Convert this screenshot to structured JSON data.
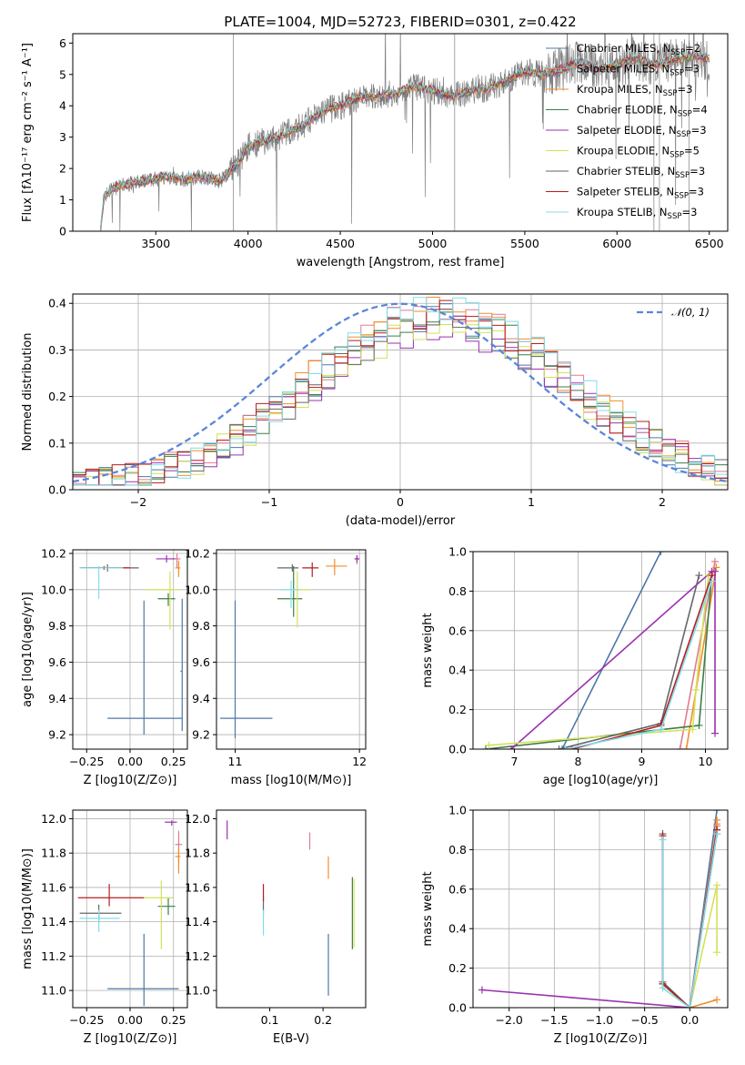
{
  "figure": {
    "title": "PLATE=1004, MJD=52723, FIBERID=0301, z=0.422"
  },
  "models": [
    {
      "name": "Chabrier MILES",
      "nssp": "2",
      "color": "#4e79a7"
    },
    {
      "name": "Salpeter MILES",
      "nssp": "3",
      "color": "#e07b8f"
    },
    {
      "name": "Kroupa MILES",
      "nssp": "3",
      "color": "#f28e2b"
    },
    {
      "name": "Chabrier ELODIE",
      "nssp": "4",
      "color": "#3b7d4a"
    },
    {
      "name": "Salpeter ELODIE",
      "nssp": "3",
      "color": "#9b30b0"
    },
    {
      "name": "Kroupa ELODIE",
      "nssp": "5",
      "color": "#d4e157"
    },
    {
      "name": "Chabrier STELIB",
      "nssp": "3",
      "color": "#666666"
    },
    {
      "name": "Salpeter STELIB",
      "nssp": "3",
      "color": "#b71c1c"
    },
    {
      "name": "Kroupa STELIB",
      "nssp": "3",
      "color": "#80deea"
    }
  ],
  "legend_parts": {
    "prefix": "N",
    "subscript": "SSP",
    "eq": "="
  },
  "chart_data": [
    {
      "id": "spectrum",
      "type": "line",
      "xlabel": "wavelength [Angstrom, rest frame]",
      "ylabel": "Flux [fλ10⁻¹⁷ erg cm⁻² s⁻¹ A⁻¹]",
      "xlim": [
        3050,
        6600
      ],
      "ylim": [
        0,
        6.3
      ],
      "xticks": [
        "3500",
        "4000",
        "4500",
        "5000",
        "5500",
        "6000",
        "6500"
      ],
      "yticks": [
        "0",
        "1",
        "2",
        "3",
        "4",
        "5",
        "6"
      ],
      "grid": false,
      "legend": "right",
      "model_continuum": {
        "x": [
          3200,
          3220,
          3260,
          3350,
          3450,
          3550,
          3650,
          3750,
          3850,
          3950,
          4000,
          4100,
          4200,
          4300,
          4400,
          4500,
          4600,
          4700,
          4800,
          4900,
          5000,
          5100,
          5200,
          5300,
          5400,
          5500,
          5600,
          5700,
          5800,
          5900,
          6000,
          6100,
          6200,
          6300,
          6400,
          6500
        ],
        "y": [
          0,
          1.1,
          1.35,
          1.5,
          1.6,
          1.75,
          1.65,
          1.75,
          1.6,
          2.2,
          2.7,
          2.9,
          3.1,
          3.4,
          3.8,
          4.0,
          4.25,
          4.3,
          4.4,
          4.6,
          4.5,
          4.3,
          4.45,
          4.55,
          4.8,
          5.1,
          5.0,
          5.15,
          5.4,
          5.2,
          5.3,
          5.5,
          5.3,
          5.45,
          5.6,
          5.5
        ]
      }
    },
    {
      "id": "residual-histogram",
      "type": "histogram",
      "xlabel": "(data-model)/error",
      "ylabel": "Normed distribution",
      "xlim": [
        -2.5,
        2.5
      ],
      "ylim": [
        0,
        0.42
      ],
      "xticks": [
        "−2",
        "−1",
        "0",
        "1",
        "2"
      ],
      "yticks": [
        "0.0",
        "0.1",
        "0.2",
        "0.3",
        "0.4"
      ],
      "grid": true,
      "legend": "top-right",
      "reference_curve": {
        "name": "𝒩(0, 1)",
        "mean": 0,
        "sigma": 1,
        "color": "#5b86d9"
      }
    },
    {
      "id": "age-vs-metallicity",
      "type": "errorbar",
      "xlabel": "Z [log10(Z/Z⊙)]",
      "ylabel": "age [log10(age/yr)]",
      "xlim": [
        -0.33,
        0.33
      ],
      "ylim": [
        9.12,
        10.22
      ],
      "xticks": [
        "−0.25",
        "0.00",
        "0.25"
      ],
      "yticks": [
        "9.2",
        "9.4",
        "9.6",
        "9.8",
        "10.0",
        "10.2"
      ],
      "grid": true,
      "points": [
        {
          "model": 0,
          "x": 0.08,
          "xerr": [
            0.21,
            0.22
          ],
          "y": 9.29,
          "yerr": [
            0.09,
            0.65
          ]
        },
        {
          "model": 0,
          "x": 0.3,
          "xerr": [
            0.01,
            0.0
          ],
          "y": 9.55,
          "yerr": [
            0.33,
            0.4
          ]
        },
        {
          "model": 1,
          "x": 0.27,
          "xerr": [
            0.03,
            0.02
          ],
          "y": 10.17,
          "yerr": [
            0.05,
            0.03
          ]
        },
        {
          "model": 2,
          "x": 0.28,
          "xerr": [
            0.02,
            0.01
          ],
          "y": 10.12,
          "yerr": [
            0.05,
            0.04
          ]
        },
        {
          "model": 3,
          "x": 0.22,
          "xerr": [
            0.06,
            0.04
          ],
          "y": 9.95,
          "yerr": [
            0.04,
            0.03
          ]
        },
        {
          "model": 4,
          "x": 0.21,
          "xerr": [
            0.06,
            0.05
          ],
          "y": 10.17,
          "yerr": [
            0.02,
            0.02
          ]
        },
        {
          "model": 5,
          "x": 0.23,
          "xerr": [
            0.14,
            0.05
          ],
          "y": 10.0,
          "yerr": [
            0.22,
            0.1
          ]
        },
        {
          "model": 6,
          "x": -0.13,
          "xerr": [
            0.15,
            0.18
          ],
          "y": 10.12,
          "yerr": [
            0.02,
            0.02
          ]
        },
        {
          "model": 7,
          "x": -0.15,
          "xerr": [
            0.14,
            0.15
          ],
          "y": 10.12,
          "yerr": [
            0.01,
            0.01
          ]
        },
        {
          "model": 8,
          "x": -0.18,
          "xerr": [
            0.11,
            0.14
          ],
          "y": 10.12,
          "yerr": [
            0.17,
            0.01
          ]
        }
      ]
    },
    {
      "id": "age-vs-mass",
      "type": "errorbar",
      "xlabel": "mass [log10(M/M⊙)]",
      "ylabel": "",
      "xlim": [
        10.85,
        12.05
      ],
      "ylim": [
        9.12,
        10.22
      ],
      "xticks": [
        "11",
        "12"
      ],
      "yticks": [
        "9.2",
        "9.4",
        "9.6",
        "9.8",
        "10.0",
        "10.2"
      ],
      "grid": true,
      "points": [
        {
          "model": 0,
          "x": 11.0,
          "xerr": [
            0.12,
            0.3
          ],
          "y": 9.29,
          "yerr": [
            0.11,
            0.65
          ]
        },
        {
          "model": 1,
          "x": 11.98,
          "xerr": [
            0.02,
            0.02
          ],
          "y": 10.17,
          "yerr": [
            0.03,
            0.02
          ]
        },
        {
          "model": 2,
          "x": 11.8,
          "xerr": [
            0.07,
            0.1
          ],
          "y": 10.13,
          "yerr": [
            0.05,
            0.04
          ]
        },
        {
          "model": 3,
          "x": 11.47,
          "xerr": [
            0.13,
            0.07
          ],
          "y": 9.95,
          "yerr": [
            0.1,
            0.18
          ]
        },
        {
          "model": 4,
          "x": 11.98,
          "xerr": [
            0.02,
            0.02
          ],
          "y": 10.17,
          "yerr": [
            0.02,
            0.02
          ]
        },
        {
          "model": 5,
          "x": 11.5,
          "xerr": [
            0.1,
            0.1
          ],
          "y": 10.0,
          "yerr": [
            0.21,
            0.1
          ]
        },
        {
          "model": 6,
          "x": 11.46,
          "xerr": [
            0.12,
            0.05
          ],
          "y": 10.12,
          "yerr": [
            0.02,
            0.02
          ]
        },
        {
          "model": 7,
          "x": 11.62,
          "xerr": [
            0.08,
            0.05
          ],
          "y": 10.12,
          "yerr": [
            0.05,
            0.03
          ]
        },
        {
          "model": 8,
          "x": 11.45,
          "xerr": [
            0.1,
            0.07
          ],
          "y": 10.0,
          "yerr": [
            0.1,
            0.05
          ]
        }
      ]
    },
    {
      "id": "mass-weight-vs-age",
      "type": "line",
      "xlabel": "age [log10(age/yr)]",
      "ylabel": "mass weight",
      "xlim": [
        6.35,
        10.35
      ],
      "ylim": [
        0,
        1
      ],
      "xticks": [
        "7",
        "8",
        "9",
        "10"
      ],
      "yticks": [
        "0.0",
        "0.2",
        "0.4",
        "0.6",
        "0.8",
        "1.0"
      ],
      "grid": true,
      "series": [
        {
          "model": 0,
          "x": [
            7.75,
            9.3
          ],
          "y": [
            0.0,
            1.0
          ]
        },
        {
          "model": 1,
          "x": [
            9.6,
            10.15
          ],
          "y": [
            0.0,
            0.95
          ]
        },
        {
          "model": 2,
          "x": [
            9.7,
            10.17
          ],
          "y": [
            0.0,
            0.92
          ]
        },
        {
          "model": 3,
          "x": [
            6.55,
            9.9,
            10.1
          ],
          "y": [
            0.0,
            0.12,
            0.88
          ]
        },
        {
          "model": 4,
          "x": [
            6.95,
            10.1,
            10.15,
            10.15
          ],
          "y": [
            0.0,
            0.9,
            0.9,
            0.08
          ]
        },
        {
          "model": 5,
          "x": [
            6.6,
            9.8,
            9.85,
            9.95,
            10.05
          ],
          "y": [
            0.02,
            0.1,
            0.3,
            0.6,
            0.88
          ]
        },
        {
          "model": 6,
          "x": [
            7.7,
            9.3,
            9.9
          ],
          "y": [
            0.0,
            0.13,
            0.88
          ]
        },
        {
          "model": 7,
          "x": [
            7.9,
            9.3,
            10.1
          ],
          "y": [
            0.0,
            0.12,
            0.88
          ]
        },
        {
          "model": 8,
          "x": [
            7.8,
            9.3,
            10.1
          ],
          "y": [
            0.0,
            0.1,
            0.85
          ]
        }
      ]
    },
    {
      "id": "mass-vs-metallicity",
      "type": "errorbar",
      "xlabel": "Z [log10(Z/Z⊙)]",
      "ylabel": "mass [log10(M/M⊙)]",
      "xlim": [
        -0.33,
        0.33
      ],
      "ylim": [
        10.9,
        12.05
      ],
      "xticks": [
        "−0.25",
        "0.00",
        "0.25"
      ],
      "yticks": [
        "11.0",
        "11.2",
        "11.4",
        "11.6",
        "11.8",
        "12.0"
      ],
      "grid": true,
      "points": [
        {
          "model": 0,
          "x": 0.08,
          "xerr": [
            0.21,
            0.2
          ],
          "y": 11.01,
          "yerr": [
            0.1,
            0.32
          ]
        },
        {
          "model": 1,
          "x": 0.28,
          "xerr": [
            0.02,
            0.02
          ],
          "y": 11.85,
          "yerr": [
            0.12,
            0.08
          ]
        },
        {
          "model": 2,
          "x": 0.28,
          "xerr": [
            0.02,
            0.01
          ],
          "y": 11.78,
          "yerr": [
            0.1,
            0.05
          ]
        },
        {
          "model": 3,
          "x": 0.22,
          "xerr": [
            0.06,
            0.04
          ],
          "y": 11.49,
          "yerr": [
            0.05,
            0.05
          ]
        },
        {
          "model": 4,
          "x": 0.24,
          "xerr": [
            0.04,
            0.03
          ],
          "y": 11.98,
          "yerr": [
            0.02,
            0.01
          ]
        },
        {
          "model": 5,
          "x": 0.18,
          "xerr": [
            0.1,
            0.07
          ],
          "y": 11.54,
          "yerr": [
            0.3,
            0.1
          ]
        },
        {
          "model": 6,
          "x": -0.18,
          "xerr": [
            0.11,
            0.13
          ],
          "y": 11.45,
          "yerr": [
            0.05,
            0.05
          ]
        },
        {
          "model": 7,
          "x": -0.12,
          "xerr": [
            0.18,
            0.2
          ],
          "y": 11.54,
          "yerr": [
            0.05,
            0.08
          ]
        },
        {
          "model": 8,
          "x": -0.18,
          "xerr": [
            0.11,
            0.12
          ],
          "y": 11.42,
          "yerr": [
            0.08,
            0.05
          ]
        }
      ]
    },
    {
      "id": "mass-vs-extinction",
      "type": "errorbar",
      "xlabel": "E(B-V)",
      "ylabel": "",
      "xlim": [
        0.0,
        0.28
      ],
      "ylim": [
        10.9,
        12.05
      ],
      "xticks": [
        "0.1",
        "0.2"
      ],
      "yticks": [
        "11.0",
        "11.2",
        "11.4",
        "11.6",
        "11.8",
        "12.0"
      ],
      "grid": false,
      "points": [
        {
          "model": 0,
          "x": 0.21,
          "xerr": [
            0,
            0
          ],
          "y": 11.15,
          "yerr": [
            0.18,
            0.18
          ]
        },
        {
          "model": 1,
          "x": 0.175,
          "xerr": [
            0,
            0
          ],
          "y": 11.88,
          "yerr": [
            0.06,
            0.04
          ]
        },
        {
          "model": 2,
          "x": 0.21,
          "xerr": [
            0,
            0
          ],
          "y": 11.72,
          "yerr": [
            0.07,
            0.06
          ]
        },
        {
          "model": 3,
          "x": 0.255,
          "xerr": [
            0,
            0
          ],
          "y": 11.44,
          "yerr": [
            0.2,
            0.22
          ]
        },
        {
          "model": 4,
          "x": 0.02,
          "xerr": [
            0,
            0
          ],
          "y": 11.93,
          "yerr": [
            0.05,
            0.06
          ]
        },
        {
          "model": 5,
          "x": 0.258,
          "xerr": [
            0,
            0
          ],
          "y": 11.45,
          "yerr": [
            0.2,
            0.2
          ]
        },
        {
          "model": 6,
          "x": 0.088,
          "xerr": [
            0,
            0
          ],
          "y": 11.5,
          "yerr": [
            0.05,
            0.05
          ]
        },
        {
          "model": 7,
          "x": 0.088,
          "xerr": [
            0,
            0
          ],
          "y": 11.57,
          "yerr": [
            0.05,
            0.05
          ]
        },
        {
          "model": 8,
          "x": 0.088,
          "xerr": [
            0,
            0
          ],
          "y": 11.42,
          "yerr": [
            0.1,
            0.05
          ]
        }
      ]
    },
    {
      "id": "mass-weight-vs-metallicity",
      "type": "line",
      "xlabel": "Z [log10(Z/Z⊙)]",
      "ylabel": "mass weight",
      "xlim": [
        -2.4,
        0.42
      ],
      "ylim": [
        0,
        1
      ],
      "xticks": [
        "−2.0",
        "−1.5",
        "−1.0",
        "−0.5",
        "0.0"
      ],
      "yticks": [
        "0.0",
        "0.2",
        "0.4",
        "0.6",
        "0.8",
        "1.0"
      ],
      "grid": true,
      "series": [
        {
          "model": 0,
          "x": [
            0.0,
            0.3
          ],
          "y": [
            0.0,
            1.0
          ]
        },
        {
          "model": 1,
          "x": [
            0.0,
            0.3
          ],
          "y": [
            0.0,
            0.93
          ]
        },
        {
          "model": 2,
          "x": [
            0.3,
            0.0,
            0.3,
            0.3
          ],
          "y": [
            0.04,
            0.0,
            0.92,
            0.95
          ]
        },
        {
          "model": 3,
          "x": [
            -0.3,
            0.0,
            0.3
          ],
          "y": [
            0.12,
            0.0,
            0.88
          ]
        },
        {
          "model": 4,
          "x": [
            -2.3,
            0.0,
            0.3,
            0.3
          ],
          "y": [
            0.09,
            0.0,
            0.9,
            0.88
          ]
        },
        {
          "model": 5,
          "x": [
            -0.3,
            0.0,
            0.3,
            0.3
          ],
          "y": [
            0.1,
            0.0,
            0.62,
            0.28
          ]
        },
        {
          "model": 6,
          "x": [
            -0.3,
            -0.3,
            0.0,
            0.3
          ],
          "y": [
            0.88,
            0.13,
            0.0,
            0.9
          ]
        },
        {
          "model": 7,
          "x": [
            -0.3,
            -0.3,
            0.0,
            0.3
          ],
          "y": [
            0.87,
            0.12,
            0.0,
            0.9
          ]
        },
        {
          "model": 8,
          "x": [
            -0.3,
            -0.3,
            0.0,
            0.3
          ],
          "y": [
            0.85,
            0.1,
            0.0,
            0.88
          ]
        }
      ]
    }
  ]
}
